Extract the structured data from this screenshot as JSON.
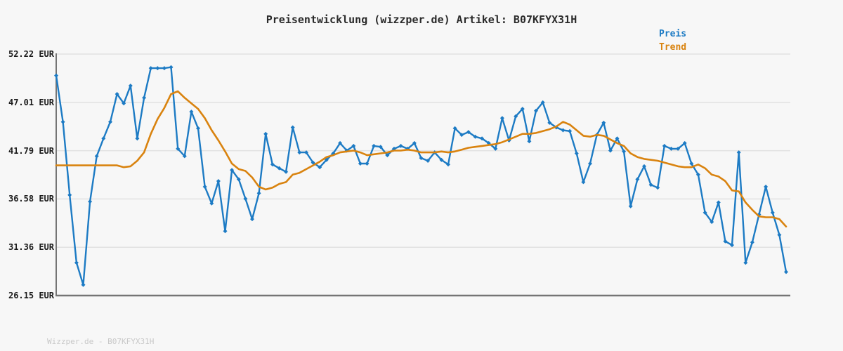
{
  "chart_data": {
    "type": "line",
    "title": "Preisentwicklung (wizzper.de) Artikel: B07KFYX31H",
    "xlabel": "",
    "ylabel": "",
    "unit": "EUR",
    "ylim": [
      26.15,
      52.22
    ],
    "ytick_values": [
      52.22,
      47.01,
      41.79,
      36.58,
      31.36,
      26.15
    ],
    "ytick_labels": [
      "52.22 EUR",
      "47.01 EUR",
      "41.79 EUR",
      "36.58 EUR",
      "31.36 EUR",
      "26.15 EUR"
    ],
    "grid": "horizontal-only",
    "x_axis_labels": "none",
    "legend_position": "top-right",
    "series": [
      {
        "name": "Preis",
        "color": "#1d7bc4",
        "marker": "diamond",
        "values": [
          49.9,
          44.9,
          37.0,
          29.7,
          27.3,
          36.3,
          41.2,
          43.1,
          44.9,
          47.9,
          46.9,
          48.8,
          43.1,
          47.5,
          50.7,
          50.7,
          50.7,
          50.8,
          42.0,
          41.2,
          46.0,
          44.2,
          37.9,
          36.1,
          38.5,
          33.1,
          39.7,
          38.7,
          36.6,
          34.4,
          37.2,
          43.6,
          40.3,
          39.9,
          39.5,
          44.3,
          41.6,
          41.6,
          40.5,
          40.0,
          40.8,
          41.5,
          42.6,
          41.8,
          42.3,
          40.4,
          40.4,
          42.3,
          42.2,
          41.3,
          42.0,
          42.3,
          42.0,
          42.6,
          41.0,
          40.7,
          41.6,
          40.8,
          40.3,
          44.2,
          43.5,
          43.8,
          43.3,
          43.1,
          42.6,
          42.0,
          45.3,
          42.9,
          45.5,
          46.3,
          42.8,
          46.1,
          47.0,
          44.8,
          44.3,
          44.0,
          43.9,
          41.5,
          38.4,
          40.4,
          43.5,
          44.8,
          41.8,
          43.1,
          41.7,
          35.8,
          38.7,
          40.1,
          38.1,
          37.8,
          42.3,
          42.0,
          42.0,
          42.6,
          40.4,
          39.2,
          35.1,
          34.1,
          36.2,
          32.0,
          31.6,
          41.6,
          29.7,
          31.9,
          34.9,
          37.9,
          35.1,
          32.7,
          28.7
        ]
      },
      {
        "name": "Trend",
        "color": "#d9830f",
        "marker": "none",
        "values": [
          40.2,
          40.2,
          40.2,
          40.2,
          40.2,
          40.2,
          40.2,
          40.2,
          40.2,
          40.2,
          40.0,
          40.1,
          40.7,
          41.6,
          43.6,
          45.2,
          46.4,
          47.9,
          48.2,
          47.5,
          46.9,
          46.3,
          45.3,
          44.0,
          42.9,
          41.7,
          40.4,
          39.8,
          39.6,
          38.9,
          37.9,
          37.6,
          37.8,
          38.2,
          38.4,
          39.2,
          39.4,
          39.8,
          40.2,
          40.6,
          41.1,
          41.3,
          41.6,
          41.7,
          41.8,
          41.6,
          41.3,
          41.4,
          41.5,
          41.6,
          41.8,
          41.8,
          41.9,
          41.8,
          41.6,
          41.6,
          41.6,
          41.7,
          41.6,
          41.7,
          41.9,
          42.1,
          42.2,
          42.3,
          42.4,
          42.5,
          42.7,
          43.0,
          43.3,
          43.6,
          43.6,
          43.7,
          43.9,
          44.1,
          44.4,
          44.9,
          44.6,
          44.0,
          43.4,
          43.3,
          43.5,
          43.4,
          43.0,
          42.6,
          42.3,
          41.5,
          41.1,
          40.9,
          40.8,
          40.7,
          40.5,
          40.3,
          40.1,
          40.0,
          40.0,
          40.3,
          39.9,
          39.2,
          39.0,
          38.5,
          37.5,
          37.4,
          36.2,
          35.4,
          34.7,
          34.6,
          34.6,
          34.4,
          33.6
        ]
      }
    ]
  },
  "colors": {
    "background": "#f7f7f7",
    "grid": "#e2e2e2",
    "spine": "#757575",
    "title_text": "#2b2b2b",
    "tick_text": "#1a1a1a",
    "watermark_text": "#c8c8c8",
    "preis": "#1d7bc4",
    "trend": "#d9830f"
  },
  "footer": {
    "watermark": "Wizzper.de - B07KFYX31H"
  }
}
